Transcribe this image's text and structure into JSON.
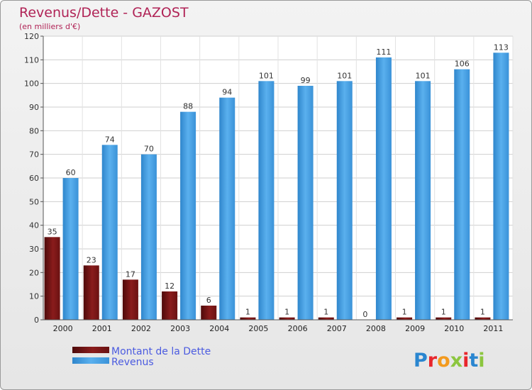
{
  "chart_data": {
    "type": "bar",
    "title": "Revenus/Dette - GAZOST",
    "subtitle": "(en milliers d'€)",
    "categories": [
      "2000",
      "2001",
      "2002",
      "2003",
      "2004",
      "2005",
      "2006",
      "2007",
      "2008",
      "2009",
      "2010",
      "2011"
    ],
    "series": [
      {
        "name": "Montant de la Dette",
        "color": "#7b1818",
        "values": [
          35,
          23,
          17,
          12,
          6,
          1,
          1,
          1,
          0,
          1,
          1,
          1
        ]
      },
      {
        "name": "Revenus",
        "color": "#4aa3e6",
        "values": [
          60,
          74,
          70,
          88,
          94,
          101,
          99,
          101,
          111,
          101,
          106,
          113
        ]
      }
    ],
    "yticks": [
      0,
      10,
      20,
      30,
      40,
      50,
      60,
      70,
      80,
      90,
      100,
      110,
      120
    ],
    "ylim": [
      0,
      120
    ],
    "grid": true,
    "legend_position": "bottom-left"
  },
  "logo": {
    "text": "Proxiti"
  }
}
